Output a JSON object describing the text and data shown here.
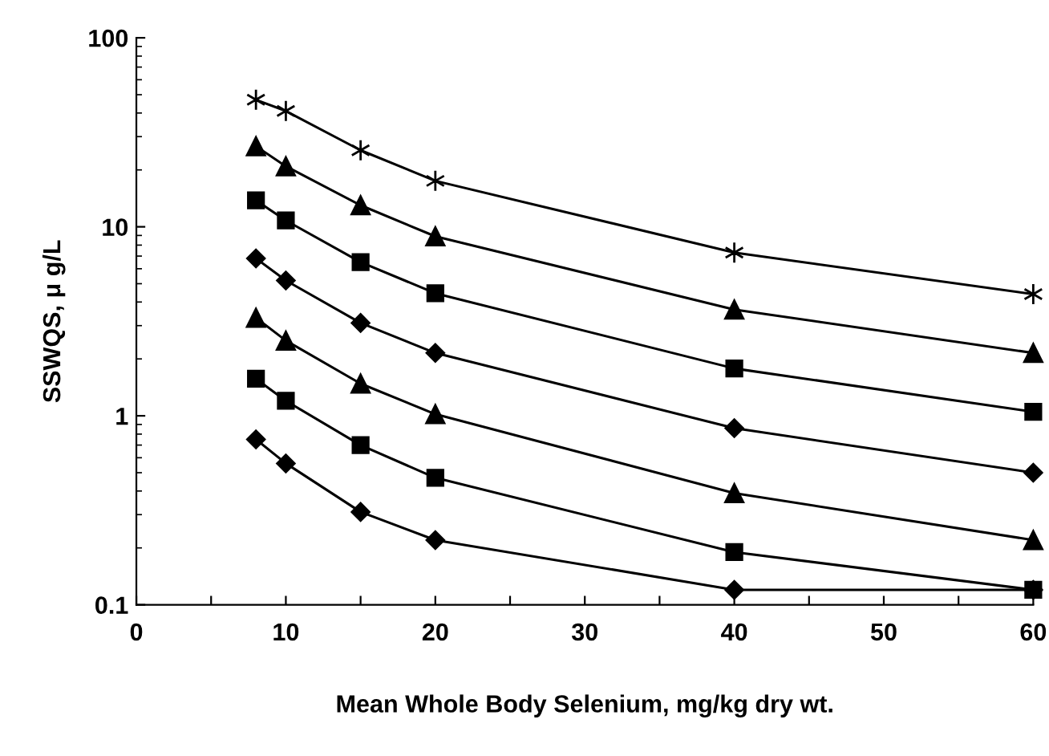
{
  "chart_data": {
    "type": "line",
    "xlabel": "Mean Whole Body Selenium, mg/kg dry wt.",
    "ylabel": "SSWQS, μ g/L",
    "x": [
      8,
      10,
      15,
      20,
      40,
      60
    ],
    "series": [
      {
        "color": "#000000",
        "marker": "cross",
        "values": [
          47,
          41,
          25.4,
          17.5,
          7.3,
          4.4
        ]
      },
      {
        "color": "#000000",
        "marker": "triangle",
        "values": [
          26.7,
          20.9,
          13.0,
          8.9,
          3.65,
          2.15
        ]
      },
      {
        "color": "#000000",
        "marker": "square",
        "values": [
          13.8,
          10.8,
          6.5,
          4.45,
          1.78,
          1.05
        ]
      },
      {
        "color": "#000000",
        "marker": "diamond",
        "values": [
          6.8,
          5.2,
          3.1,
          2.15,
          0.86,
          0.5
        ]
      },
      {
        "color": "#000000",
        "marker": "triangle",
        "values": [
          3.3,
          2.5,
          1.48,
          1.02,
          0.39,
          0.22
        ]
      },
      {
        "color": "#000000",
        "marker": "square",
        "values": [
          1.57,
          1.2,
          0.7,
          0.47,
          0.19,
          0.12
        ]
      },
      {
        "color": "#000000",
        "marker": "diamond",
        "values": [
          0.75,
          0.56,
          0.31,
          0.22,
          0.12,
          0.12
        ]
      }
    ],
    "log": "y",
    "xlim": [
      0,
      60
    ],
    "ylim": [
      0.1,
      100
    ],
    "xticks": [
      0,
      {
        "value": 5,
        "label": null
      },
      10,
      {
        "value": 15,
        "label": null
      },
      20,
      {
        "value": 25,
        "label": null
      },
      30,
      {
        "value": 35,
        "label": null
      },
      40,
      {
        "value": 45,
        "label": null
      },
      50,
      {
        "value": 55,
        "label": null
      },
      60
    ],
    "yticks": [
      0.1,
      1,
      10,
      100
    ],
    "grid": false,
    "line_style": "solid"
  }
}
